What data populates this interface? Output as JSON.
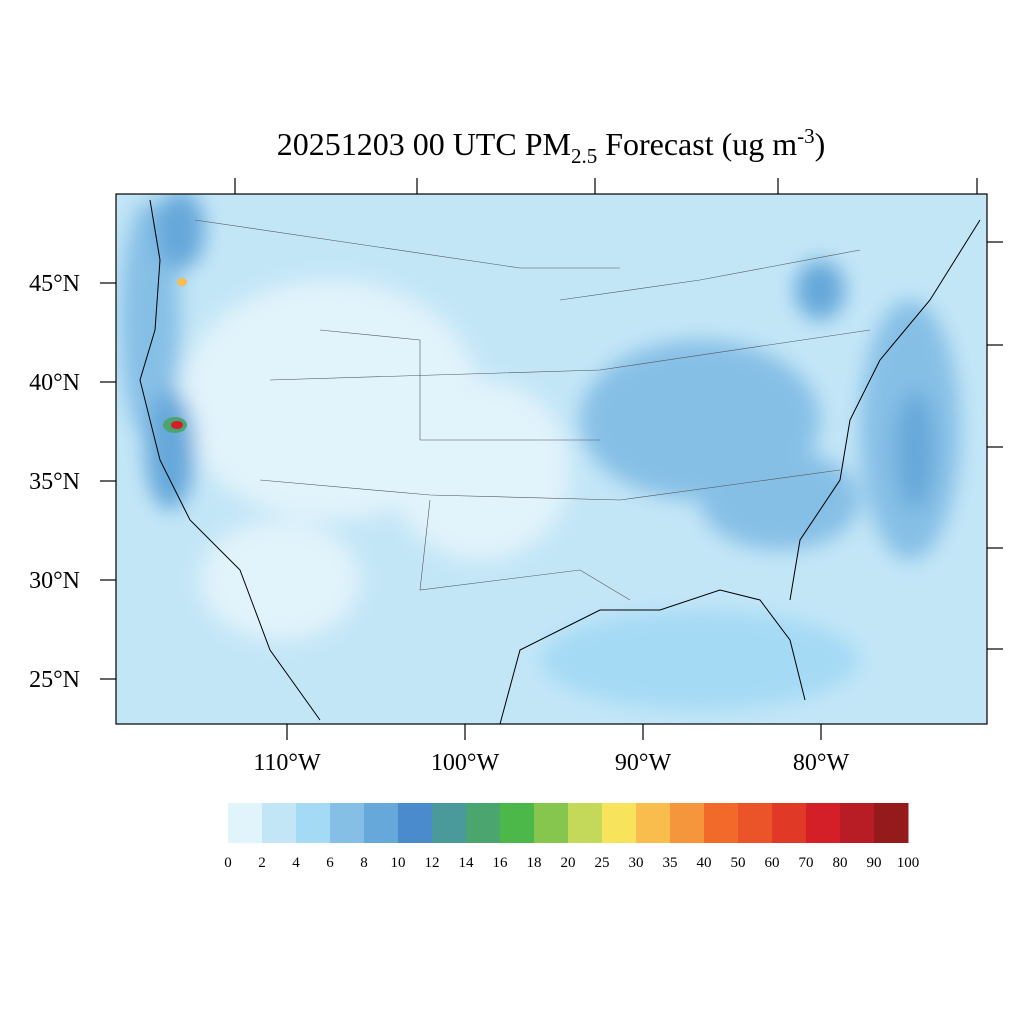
{
  "title": {
    "main": "20251203 00 UTC PM",
    "subscript": "2.5",
    "middle": " Forecast (ug m",
    "superscript": "-3",
    "end": ")"
  },
  "lat_labels": [
    "45°N",
    "40°N",
    "35°N",
    "30°N",
    "25°N"
  ],
  "lon_labels": [
    "110°W",
    "100°W",
    "90°W",
    "80°W"
  ],
  "colorbar": {
    "levels": [
      0,
      2,
      4,
      6,
      8,
      10,
      12,
      14,
      16,
      18,
      20,
      25,
      30,
      35,
      40,
      50,
      60,
      70,
      80,
      90,
      100
    ],
    "colors": [
      "#e1f3fb",
      "#c3e6f7",
      "#a5daf5",
      "#86bfe6",
      "#66a8da",
      "#4a8bcd",
      "#4a9a9c",
      "#4aa56e",
      "#4cb84a",
      "#86c54e",
      "#c4d95a",
      "#f7e35c",
      "#f8bd4c",
      "#f6963c",
      "#f26a2a",
      "#ea5428",
      "#e03a26",
      "#d41f29",
      "#b81c24",
      "#941a1c"
    ]
  }
}
